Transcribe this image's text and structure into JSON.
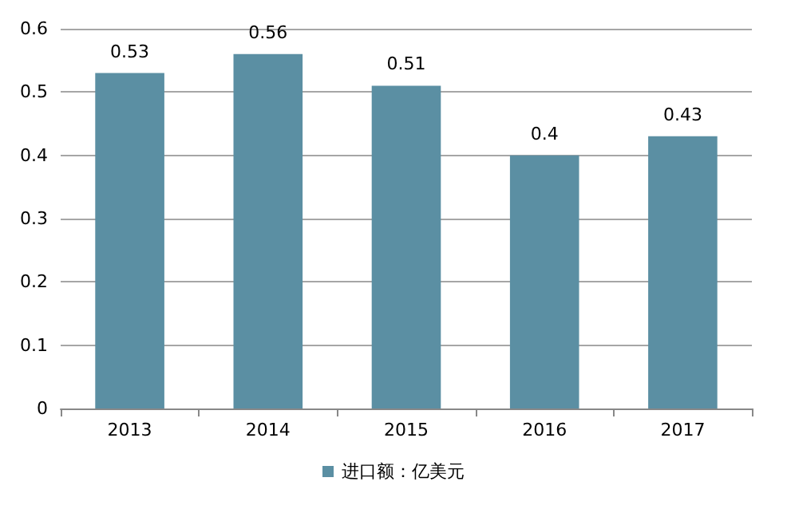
{
  "chart_data": {
    "type": "bar",
    "categories": [
      "2013",
      "2014",
      "2015",
      "2016",
      "2017"
    ],
    "series": [
      {
        "name": "进口额：亿美元",
        "color": "#5b8fa3",
        "values": [
          0.53,
          0.56,
          0.51,
          0.4,
          0.43
        ]
      }
    ],
    "ylim": [
      0,
      0.6
    ],
    "yticks": [
      0,
      0.1,
      0.2,
      0.3,
      0.4,
      0.5,
      0.6
    ],
    "grid": "y",
    "legend": "bottom",
    "data_labels": true
  }
}
